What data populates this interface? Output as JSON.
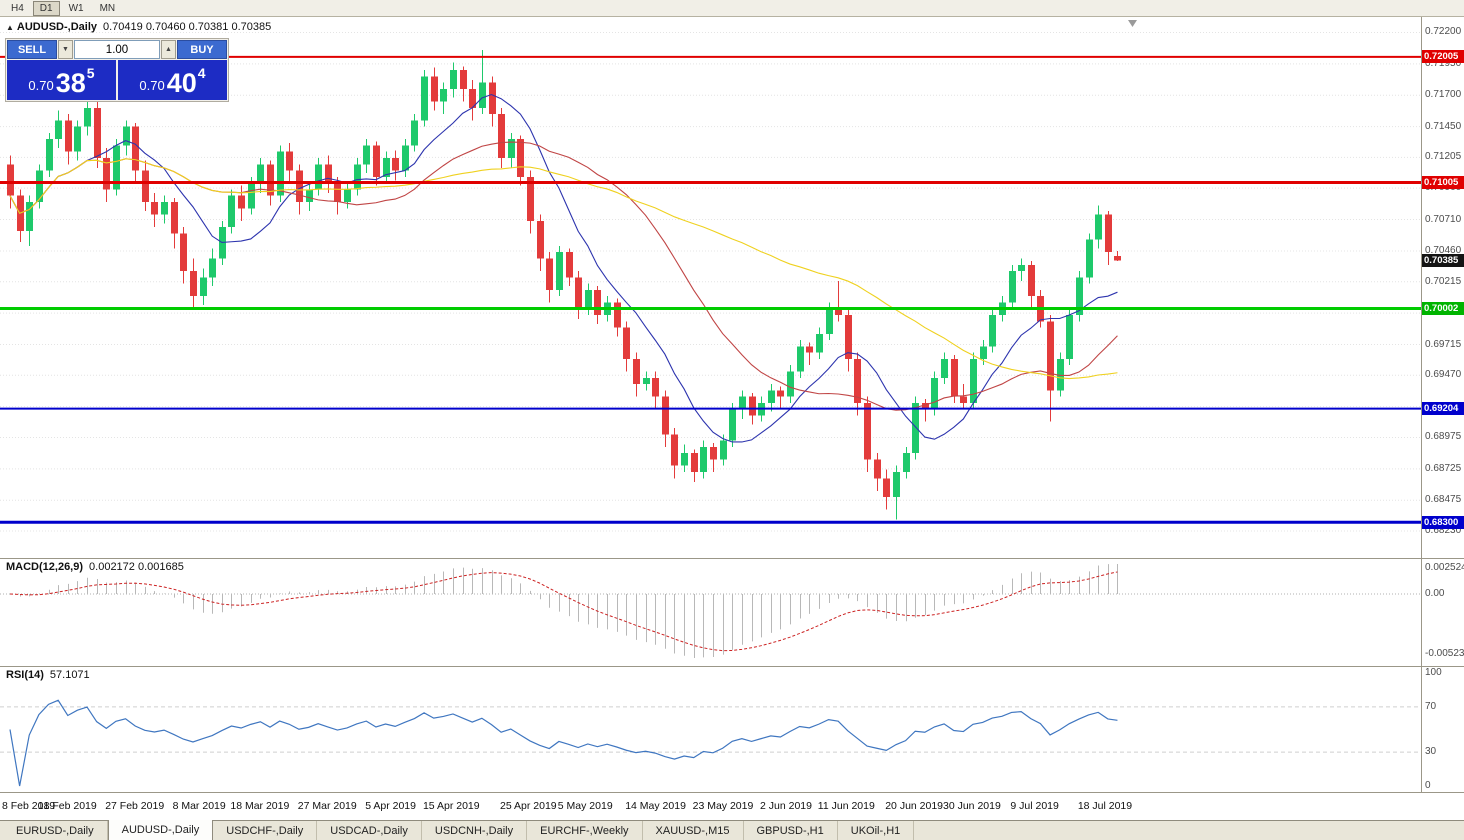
{
  "toolbar": {
    "timeframes": [
      "H4",
      "D1",
      "W1",
      "MN"
    ],
    "active": "D1"
  },
  "header": {
    "marker": "▲",
    "title": "AUDUSD-,Daily",
    "ohlc": "0.70419 0.70460 0.70381 0.70385"
  },
  "trade_panel": {
    "sell_label": "SELL",
    "buy_label": "BUY",
    "volume": "1.00",
    "spin_up": "▲",
    "spin_down": "▼",
    "sell_price": {
      "big_prefix": "0.70",
      "big": "38",
      "sup": "5"
    },
    "buy_price": {
      "big_prefix": "0.70",
      "big": "40",
      "sup": "4"
    }
  },
  "price_scale": {
    "labels": [
      "0.72200",
      "0.71950",
      "0.71700",
      "0.71450",
      "0.71205",
      "0.70960",
      "0.70710",
      "0.70460",
      "0.70215",
      "0.69965",
      "0.69715",
      "0.69470",
      "0.69220",
      "0.68975",
      "0.68725",
      "0.68475",
      "0.68230"
    ],
    "tags": [
      {
        "label": "0.72005",
        "price": 0.72005,
        "color": "#e00000"
      },
      {
        "label": "0.71005",
        "price": 0.71005,
        "color": "#e00000"
      },
      {
        "label": "0.70385",
        "price": 0.70385,
        "color": "#141414"
      },
      {
        "label": "0.70002",
        "price": 0.70002,
        "color": "#00b400"
      },
      {
        "label": "0.69204",
        "price": 0.69204,
        "color": "#0000cc"
      },
      {
        "label": "0.68300",
        "price": 0.683,
        "color": "#0000cc"
      }
    ]
  },
  "levels": [
    {
      "price": 0.72005,
      "color": "#e00000",
      "width": 2
    },
    {
      "price": 0.71005,
      "color": "#e00000",
      "width": 3
    },
    {
      "price": 0.70002,
      "color": "#00cc00",
      "width": 3
    },
    {
      "price": 0.69204,
      "color": "#0000cc",
      "width": 2
    },
    {
      "price": 0.683,
      "color": "#0000cc",
      "width": 3
    }
  ],
  "indicators": {
    "macd": {
      "label": "MACD(12,26,9)",
      "values": "0.002172 0.001685",
      "scale_top": "0.002524",
      "scale_zero": "0.00",
      "scale_bottom": "-0.005234"
    },
    "rsi": {
      "label": "RSI(14)",
      "value": "57.1071",
      "scale": [
        "100",
        "70",
        "30",
        "0"
      ]
    }
  },
  "x_axis": {
    "ticks": [
      {
        "label": "8 Feb 2019",
        "i": 0
      },
      {
        "label": "18 Feb 2019",
        "i": 6
      },
      {
        "label": "27 Feb 2019",
        "i": 13
      },
      {
        "label": "8 Mar 2019",
        "i": 20
      },
      {
        "label": "18 Mar 2019",
        "i": 26
      },
      {
        "label": "27 Mar 2019",
        "i": 33
      },
      {
        "label": "5 Apr 2019",
        "i": 40
      },
      {
        "label": "15 Apr 2019",
        "i": 46
      },
      {
        "label": "25 Apr 2019",
        "i": 54
      },
      {
        "label": "5 May 2019",
        "i": 60
      },
      {
        "label": "14 May 2019",
        "i": 67
      },
      {
        "label": "23 May 2019",
        "i": 74
      },
      {
        "label": "2 Jun 2019",
        "i": 81
      },
      {
        "label": "11 Jun 2019",
        "i": 87
      },
      {
        "label": "20 Jun 2019",
        "i": 94
      },
      {
        "label": "30 Jun 2019",
        "i": 100
      },
      {
        "label": "9 Jul 2019",
        "i": 107
      },
      {
        "label": "18 Jul 2019",
        "i": 114
      }
    ]
  },
  "tabs": [
    {
      "label": "EURUSD-,Daily",
      "active": false
    },
    {
      "label": "AUDUSD-,Daily",
      "active": true
    },
    {
      "label": "USDCHF-,Daily",
      "active": false
    },
    {
      "label": "USDCAD-,Daily",
      "active": false
    },
    {
      "label": "USDCNH-,Daily",
      "active": false
    },
    {
      "label": "EURCHF-,Weekly",
      "active": false
    },
    {
      "label": "XAUUSD-,M15",
      "active": false
    },
    {
      "label": "GBPUSD-,H1",
      "active": false
    },
    {
      "label": "UKOil-,H1",
      "active": false
    }
  ],
  "chart_data": {
    "type": "candlestick",
    "symbol": "AUDUSD-",
    "timeframe": "Daily",
    "title": "AUDUSD-,Daily",
    "ohlc_header": {
      "open": "0.70419",
      "high": "0.70460",
      "low": "0.70381",
      "close": "0.70385"
    },
    "y_range": [
      0.68015,
      0.72315
    ],
    "colors": {
      "up": "#1ec96b",
      "down": "#e33b3b",
      "rsi": "#3f76c0",
      "macd_hist": "#b8b8b8",
      "macd_signal": "#cc2222"
    },
    "moving_averages": [
      {
        "name": "fast",
        "period": 9,
        "color": "#2d34ae"
      },
      {
        "name": "mid",
        "period": 24,
        "color": "#c04545"
      },
      {
        "name": "slow",
        "period": 52,
        "color": "#efd11f"
      }
    ],
    "macd_params": {
      "fast": 12,
      "slow": 26,
      "signal": 9
    },
    "rsi_period": 14,
    "candles": [
      [
        0.7115,
        0.7122,
        0.708,
        0.709
      ],
      [
        0.709,
        0.7095,
        0.7053,
        0.7062
      ],
      [
        0.7062,
        0.709,
        0.705,
        0.7085
      ],
      [
        0.7085,
        0.7115,
        0.708,
        0.711
      ],
      [
        0.711,
        0.714,
        0.7105,
        0.7135
      ],
      [
        0.7135,
        0.7158,
        0.7128,
        0.715
      ],
      [
        0.715,
        0.7155,
        0.7115,
        0.7125
      ],
      [
        0.7125,
        0.715,
        0.7118,
        0.7145
      ],
      [
        0.7145,
        0.7168,
        0.7138,
        0.716
      ],
      [
        0.716,
        0.7165,
        0.7112,
        0.712
      ],
      [
        0.712,
        0.7128,
        0.7085,
        0.7095
      ],
      [
        0.7095,
        0.7135,
        0.709,
        0.713
      ],
      [
        0.713,
        0.715,
        0.7122,
        0.7145
      ],
      [
        0.7145,
        0.7148,
        0.71,
        0.711
      ],
      [
        0.711,
        0.7118,
        0.7078,
        0.7085
      ],
      [
        0.7085,
        0.7092,
        0.7065,
        0.7075
      ],
      [
        0.7075,
        0.709,
        0.7068,
        0.7085
      ],
      [
        0.7085,
        0.7088,
        0.7048,
        0.706
      ],
      [
        0.706,
        0.7065,
        0.702,
        0.703
      ],
      [
        0.703,
        0.704,
        0.7,
        0.701
      ],
      [
        0.701,
        0.7032,
        0.7003,
        0.7025
      ],
      [
        0.7025,
        0.7048,
        0.7018,
        0.704
      ],
      [
        0.704,
        0.707,
        0.7035,
        0.7065
      ],
      [
        0.7065,
        0.7095,
        0.706,
        0.709
      ],
      [
        0.709,
        0.7098,
        0.707,
        0.708
      ],
      [
        0.708,
        0.7105,
        0.7075,
        0.71
      ],
      [
        0.71,
        0.712,
        0.7092,
        0.7115
      ],
      [
        0.7115,
        0.7118,
        0.7082,
        0.709
      ],
      [
        0.709,
        0.713,
        0.7085,
        0.7125
      ],
      [
        0.7125,
        0.7132,
        0.71,
        0.711
      ],
      [
        0.711,
        0.7115,
        0.7075,
        0.7085
      ],
      [
        0.7085,
        0.71,
        0.7078,
        0.7095
      ],
      [
        0.7095,
        0.712,
        0.709,
        0.7115
      ],
      [
        0.7115,
        0.7122,
        0.7092,
        0.71
      ],
      [
        0.71,
        0.7105,
        0.7075,
        0.7085
      ],
      [
        0.7085,
        0.71,
        0.708,
        0.7095
      ],
      [
        0.7095,
        0.712,
        0.709,
        0.7115
      ],
      [
        0.7115,
        0.7135,
        0.7108,
        0.713
      ],
      [
        0.713,
        0.7133,
        0.7098,
        0.7105
      ],
      [
        0.7105,
        0.7125,
        0.71,
        0.712
      ],
      [
        0.712,
        0.7126,
        0.7102,
        0.711
      ],
      [
        0.711,
        0.7135,
        0.7105,
        0.713
      ],
      [
        0.713,
        0.7155,
        0.7125,
        0.715
      ],
      [
        0.715,
        0.719,
        0.7145,
        0.7185
      ],
      [
        0.7185,
        0.7192,
        0.7158,
        0.7165
      ],
      [
        0.7165,
        0.718,
        0.7155,
        0.7175
      ],
      [
        0.7175,
        0.7196,
        0.7168,
        0.719
      ],
      [
        0.719,
        0.7193,
        0.7165,
        0.7175
      ],
      [
        0.7175,
        0.7182,
        0.715,
        0.716
      ],
      [
        0.716,
        0.7206,
        0.7155,
        0.718
      ],
      [
        0.718,
        0.7185,
        0.7145,
        0.7155
      ],
      [
        0.7155,
        0.716,
        0.7112,
        0.712
      ],
      [
        0.712,
        0.714,
        0.7112,
        0.7135
      ],
      [
        0.7135,
        0.7138,
        0.7098,
        0.7105
      ],
      [
        0.7105,
        0.711,
        0.706,
        0.707
      ],
      [
        0.707,
        0.7075,
        0.703,
        0.704
      ],
      [
        0.704,
        0.7045,
        0.7005,
        0.7015
      ],
      [
        0.7015,
        0.705,
        0.701,
        0.7045
      ],
      [
        0.7045,
        0.7048,
        0.7018,
        0.7025
      ],
      [
        0.7025,
        0.703,
        0.6992,
        0.7
      ],
      [
        0.7,
        0.702,
        0.6995,
        0.7015
      ],
      [
        0.7015,
        0.7018,
        0.6988,
        0.6995
      ],
      [
        0.6995,
        0.701,
        0.699,
        0.7005
      ],
      [
        0.7005,
        0.7008,
        0.6978,
        0.6985
      ],
      [
        0.6985,
        0.699,
        0.695,
        0.696
      ],
      [
        0.696,
        0.6965,
        0.693,
        0.694
      ],
      [
        0.694,
        0.695,
        0.6935,
        0.6945
      ],
      [
        0.6945,
        0.695,
        0.692,
        0.693
      ],
      [
        0.693,
        0.6935,
        0.689,
        0.69
      ],
      [
        0.69,
        0.6905,
        0.6865,
        0.6875
      ],
      [
        0.6875,
        0.6892,
        0.687,
        0.6885
      ],
      [
        0.6885,
        0.6888,
        0.6862,
        0.687
      ],
      [
        0.687,
        0.6895,
        0.6865,
        0.689
      ],
      [
        0.689,
        0.6893,
        0.687,
        0.688
      ],
      [
        0.688,
        0.69,
        0.6875,
        0.6895
      ],
      [
        0.6895,
        0.6925,
        0.689,
        0.692
      ],
      [
        0.692,
        0.6935,
        0.6912,
        0.693
      ],
      [
        0.693,
        0.6933,
        0.6908,
        0.6915
      ],
      [
        0.6915,
        0.693,
        0.691,
        0.6925
      ],
      [
        0.6925,
        0.694,
        0.6918,
        0.6935
      ],
      [
        0.6935,
        0.6938,
        0.692,
        0.693
      ],
      [
        0.693,
        0.6955,
        0.6925,
        0.695
      ],
      [
        0.695,
        0.6975,
        0.6945,
        0.697
      ],
      [
        0.697,
        0.6973,
        0.6955,
        0.6965
      ],
      [
        0.6965,
        0.6985,
        0.696,
        0.698
      ],
      [
        0.698,
        0.7005,
        0.6975,
        0.7
      ],
      [
        0.7,
        0.7022,
        0.699,
        0.6995
      ],
      [
        0.6995,
        0.7,
        0.695,
        0.696
      ],
      [
        0.696,
        0.6965,
        0.6915,
        0.6925
      ],
      [
        0.6925,
        0.693,
        0.687,
        0.688
      ],
      [
        0.688,
        0.6885,
        0.6855,
        0.6865
      ],
      [
        0.6865,
        0.6872,
        0.684,
        0.685
      ],
      [
        0.685,
        0.6875,
        0.6832,
        0.687
      ],
      [
        0.687,
        0.689,
        0.6865,
        0.6885
      ],
      [
        0.6885,
        0.693,
        0.688,
        0.6925
      ],
      [
        0.6925,
        0.6928,
        0.691,
        0.692
      ],
      [
        0.692,
        0.695,
        0.6915,
        0.6945
      ],
      [
        0.6945,
        0.6965,
        0.694,
        0.696
      ],
      [
        0.696,
        0.6963,
        0.6925,
        0.693
      ],
      [
        0.693,
        0.694,
        0.692,
        0.6925
      ],
      [
        0.6925,
        0.6965,
        0.692,
        0.696
      ],
      [
        0.696,
        0.6975,
        0.6955,
        0.697
      ],
      [
        0.697,
        0.7,
        0.6965,
        0.6995
      ],
      [
        0.6995,
        0.701,
        0.699,
        0.7005
      ],
      [
        0.7005,
        0.7035,
        0.7,
        0.703
      ],
      [
        0.703,
        0.704,
        0.7022,
        0.7035
      ],
      [
        0.7035,
        0.7038,
        0.7,
        0.701
      ],
      [
        0.701,
        0.7015,
        0.6985,
        0.699
      ],
      [
        0.699,
        0.6995,
        0.691,
        0.6935
      ],
      [
        0.6935,
        0.6965,
        0.693,
        0.696
      ],
      [
        0.696,
        0.7,
        0.6955,
        0.6995
      ],
      [
        0.6995,
        0.703,
        0.699,
        0.7025
      ],
      [
        0.7025,
        0.706,
        0.702,
        0.7055
      ],
      [
        0.7055,
        0.7082,
        0.7048,
        0.7075
      ],
      [
        0.7075,
        0.7078,
        0.7035,
        0.7045
      ],
      [
        0.70419,
        0.7046,
        0.70381,
        0.70385
      ]
    ]
  }
}
